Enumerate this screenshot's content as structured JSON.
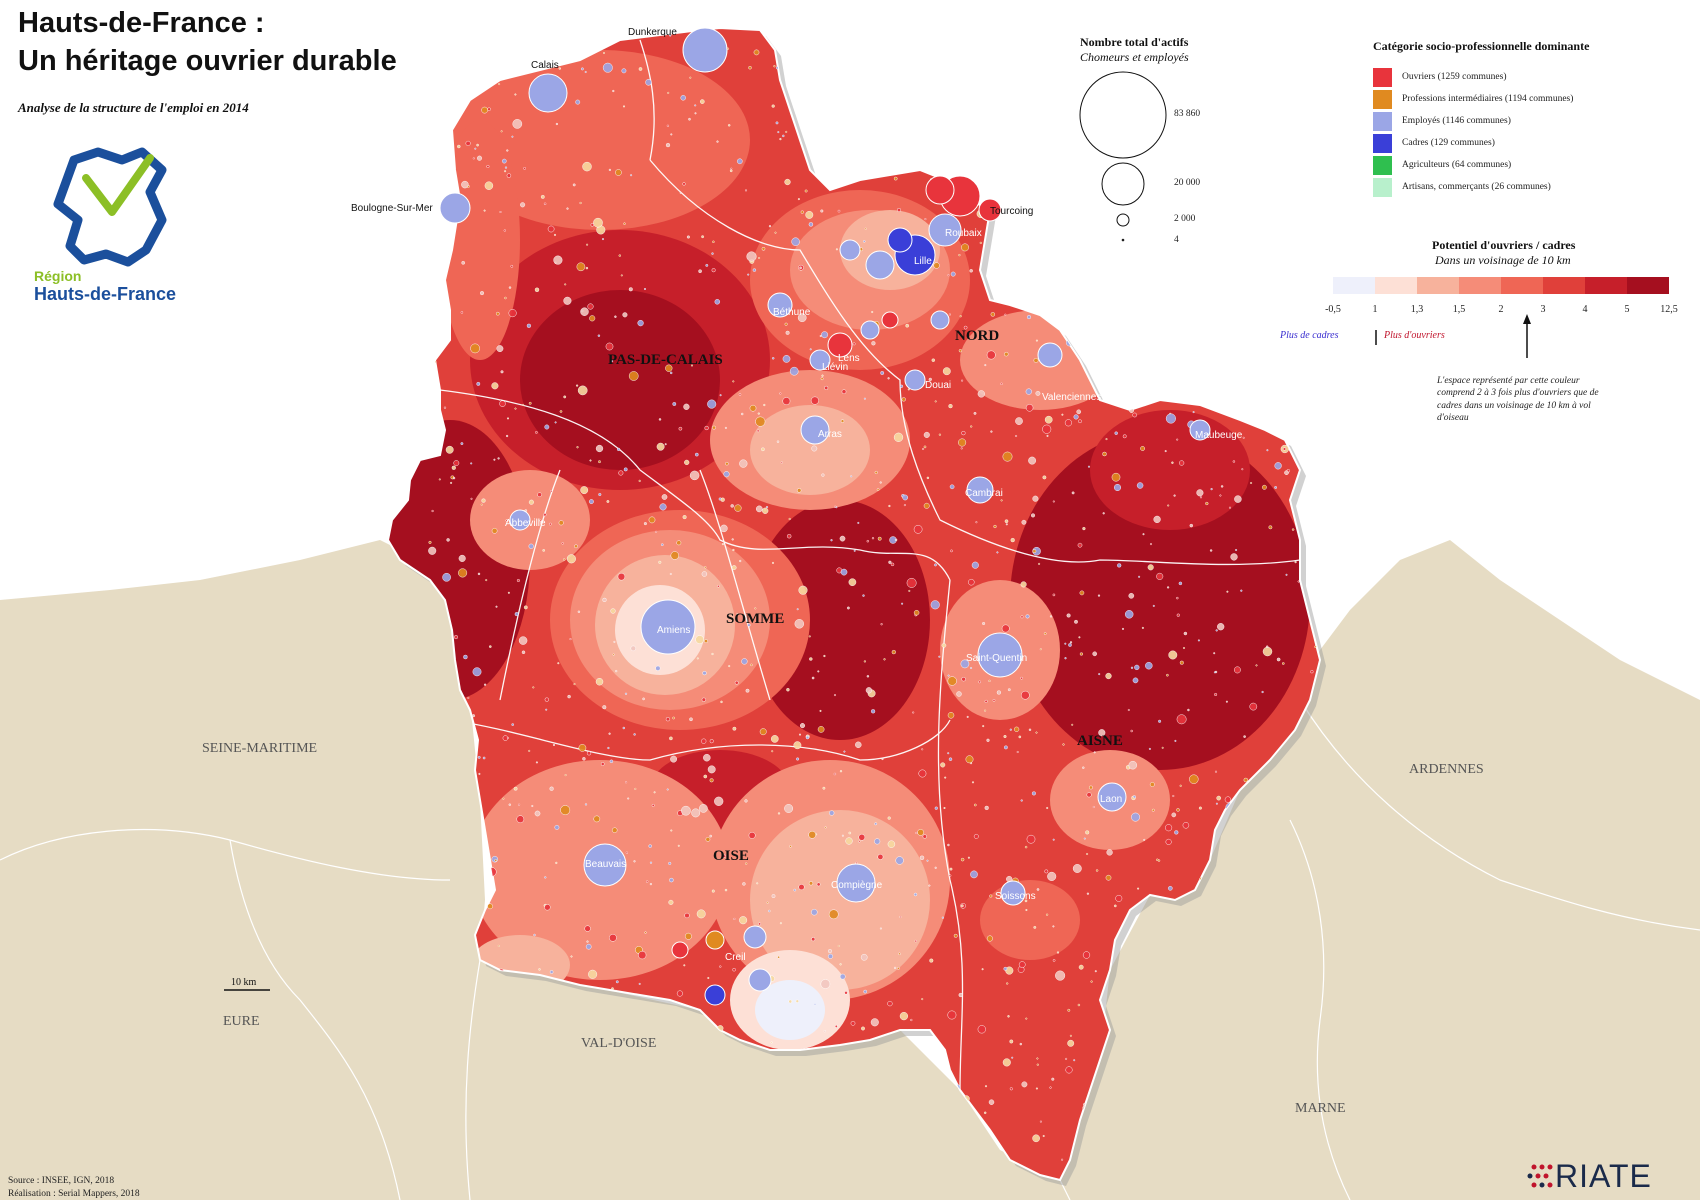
{
  "title_line1": "Hauts-de-France :",
  "title_line2": "Un héritage ouvrier durable",
  "subtitle": "Analyse de la structure de l'emploi en 2014",
  "logo": {
    "line1": "Région",
    "line2": "Hauts-de-France",
    "color_primary": "#1b4f9c",
    "color_accent": "#8cbf26"
  },
  "legend_size": {
    "title": "Nombre total d'actifs",
    "subtitle": "Chomeurs et employés",
    "items": [
      {
        "label": "83 860",
        "value": 83860
      },
      {
        "label": "20 000",
        "value": 20000
      },
      {
        "label": "2 000",
        "value": 2000
      },
      {
        "label": "4",
        "value": 4
      }
    ]
  },
  "legend_category": {
    "title": "Catégorie socio-professionnelle dominante",
    "items": [
      {
        "label": "Ouvriers (1259 communes)",
        "color": "#e8343c"
      },
      {
        "label": "Professions intermédiaires (1194 communes)",
        "color": "#e08a20"
      },
      {
        "label": "Employés (1146 communes)",
        "color": "#9ba6e6"
      },
      {
        "label": "Cadres (129 communes)",
        "color": "#3a3fd8"
      },
      {
        "label": "Agriculteurs (64 communes)",
        "color": "#2fbf4f"
      },
      {
        "label": "Artisans, commerçants (26 communes)",
        "color": "#b8f0cc"
      }
    ]
  },
  "legend_potential": {
    "title": "Potentiel d'ouvriers / cadres",
    "subtitle": "Dans un voisinage de 10 km",
    "ticks": [
      "-0,5",
      "1",
      "1,3",
      "1,5",
      "2",
      "3",
      "4",
      "5",
      "12,5"
    ],
    "colors": [
      "#eef0fb",
      "#fde0d6",
      "#f7b29c",
      "#f58c78",
      "#ef6655",
      "#e0403a",
      "#c61f2a",
      "#a50f1f"
    ],
    "left_label": "Plus de cadres",
    "right_label": "Plus d'ouvriers",
    "note": "L'espace représenté par cette couleur comprend 2 à 3 fois plus d'ouvriers que de cadres dans un voisinage de 10 km à vol d'oiseau"
  },
  "departments": [
    "PAS-DE-CALAIS",
    "NORD",
    "SOMME",
    "AISNE",
    "OISE"
  ],
  "neighbors": [
    "SEINE-MARITIME",
    "EURE",
    "VAL-D'OISE",
    "ARDENNES",
    "MARNE"
  ],
  "cities": [
    "Dunkerque",
    "Calais",
    "Boulogne-Sur-Mer",
    "Tourcoing",
    "Roubaix",
    "Lille",
    "Béthune",
    "Lens",
    "Liévin",
    "Douai",
    "Valenciennes",
    "Arras",
    "Maubeuge",
    "Cambrai",
    "Abbeville",
    "Amiens",
    "Saint-Quentin",
    "Laon",
    "Beauvais",
    "Compiègne",
    "Soissons",
    "Creil"
  ],
  "scale_bar": "10 km",
  "source_line1": "Source : INSEE, IGN, 2018",
  "source_line2": "Réalisation : Serial Mappers, 2018",
  "brand": "RIATE",
  "colors": {
    "land": "#e6dcc4",
    "ouvriers": "#e8343c",
    "intermediaires": "#e08a20",
    "employes": "#9ba6e6",
    "cadres": "#3a3fd8"
  }
}
